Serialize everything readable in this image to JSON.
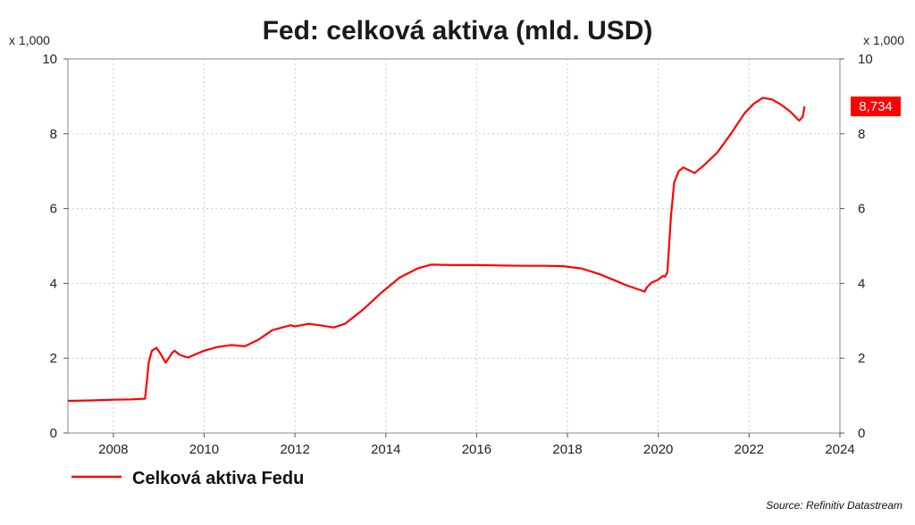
{
  "chart_data": {
    "type": "line",
    "title": "Fed: celková aktiva (mld. USD)",
    "y_multiplier_label": "x 1,000",
    "xlim": [
      2007.0,
      2024.0
    ],
    "ylim": [
      0,
      10
    ],
    "x_ticks": [
      2008,
      2010,
      2012,
      2014,
      2016,
      2018,
      2020,
      2022,
      2024
    ],
    "y_ticks": [
      0,
      2,
      4,
      6,
      8,
      10
    ],
    "grid": true,
    "line_color": "#ff0000",
    "series": [
      {
        "name": "Celková aktiva Fedu",
        "last_value_label": "8,734",
        "x": [
          2007.0,
          2007.5,
          2008.0,
          2008.4,
          2008.7,
          2008.78,
          2008.85,
          2008.95,
          2009.05,
          2009.15,
          2009.22,
          2009.3,
          2009.35,
          2009.45,
          2009.55,
          2009.65,
          2009.8,
          2010.0,
          2010.3,
          2010.6,
          2010.9,
          2011.2,
          2011.5,
          2011.9,
          2012.0,
          2012.3,
          2012.6,
          2012.85,
          2013.1,
          2013.5,
          2013.9,
          2014.3,
          2014.7,
          2015.0,
          2015.5,
          2016.0,
          2016.5,
          2017.0,
          2017.5,
          2017.9,
          2018.3,
          2018.7,
          2019.0,
          2019.3,
          2019.6,
          2019.7,
          2019.75,
          2019.85,
          2020.0,
          2020.1,
          2020.15,
          2020.2,
          2020.28,
          2020.35,
          2020.45,
          2020.55,
          2020.8,
          2021.0,
          2021.3,
          2021.6,
          2021.9,
          2022.1,
          2022.3,
          2022.5,
          2022.7,
          2022.9,
          2023.1,
          2023.18,
          2023.22
        ],
        "y": [
          0.86,
          0.87,
          0.89,
          0.9,
          0.92,
          1.9,
          2.2,
          2.28,
          2.1,
          1.88,
          2.0,
          2.15,
          2.2,
          2.1,
          2.05,
          2.02,
          2.1,
          2.2,
          2.3,
          2.35,
          2.32,
          2.5,
          2.75,
          2.88,
          2.85,
          2.92,
          2.87,
          2.82,
          2.92,
          3.3,
          3.75,
          4.15,
          4.4,
          4.5,
          4.49,
          4.49,
          4.48,
          4.47,
          4.47,
          4.46,
          4.4,
          4.25,
          4.1,
          3.95,
          3.82,
          3.78,
          3.9,
          4.02,
          4.1,
          4.2,
          4.18,
          4.3,
          5.8,
          6.7,
          7.0,
          7.1,
          6.95,
          7.15,
          7.5,
          8.0,
          8.55,
          8.8,
          8.96,
          8.92,
          8.78,
          8.6,
          8.35,
          8.45,
          8.73
        ]
      }
    ],
    "source": "Source: Refinitiv Datastream"
  }
}
